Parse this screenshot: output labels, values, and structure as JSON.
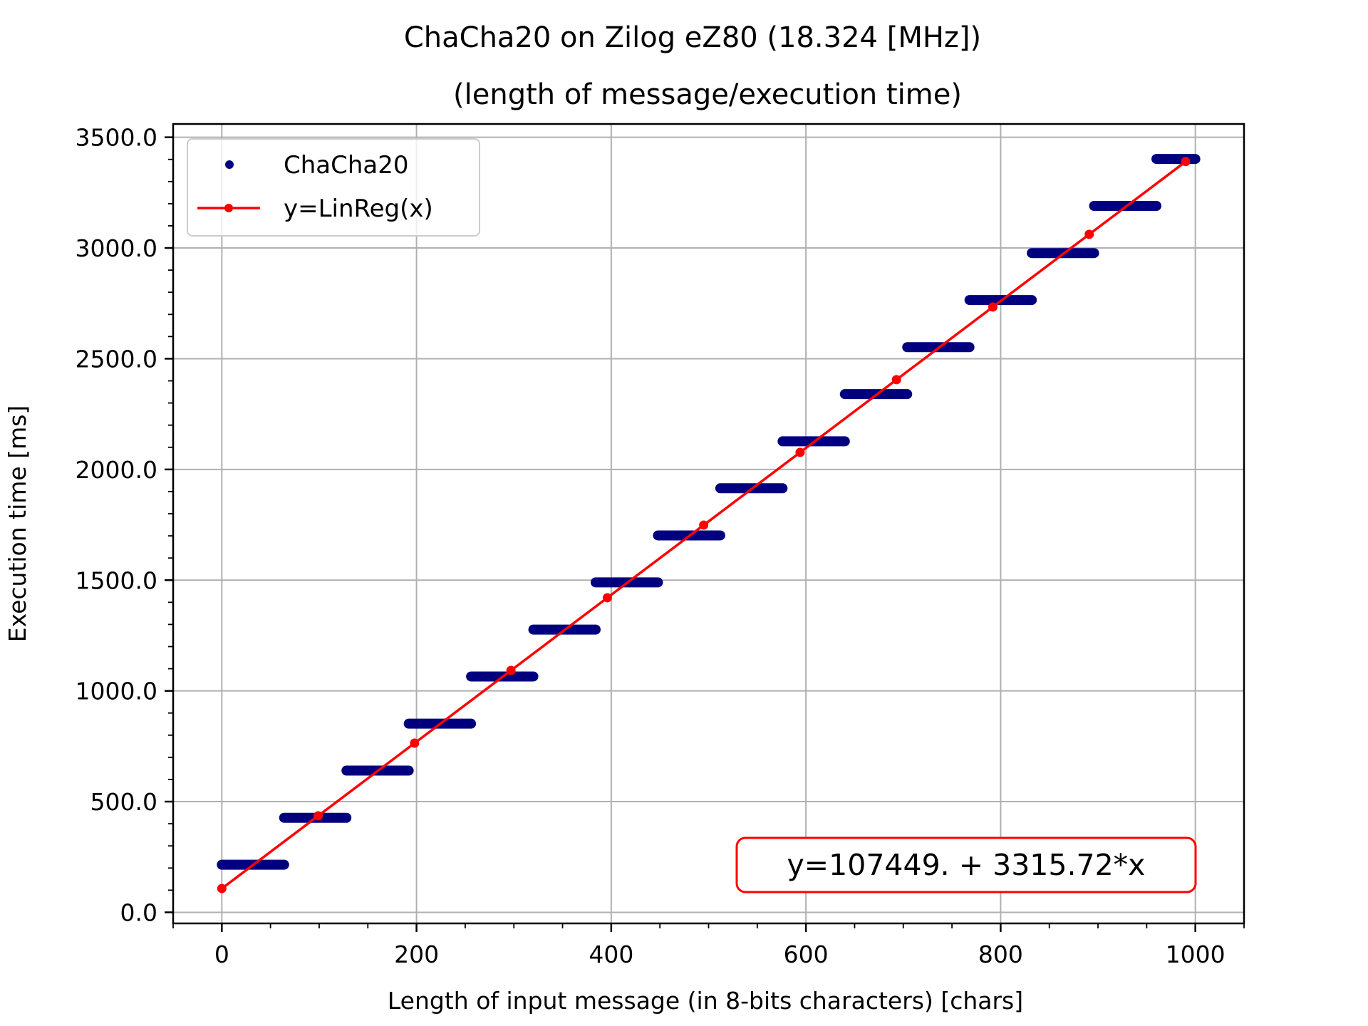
{
  "chart_data": {
    "type": "scatter",
    "title": "ChaCha20 on Zilog eZ80 (18.324 [MHz])",
    "subtitle": "(length of message/execution time)",
    "xlabel": "Length of input message (in 8-bits characters) [chars]",
    "ylabel": "Execution time [ms]",
    "xlim": [
      -50,
      1050
    ],
    "ylim": [
      -50,
      3560
    ],
    "x_ticks": [
      0,
      200,
      400,
      600,
      800,
      1000
    ],
    "x_tick_labels": [
      "0",
      "200",
      "400",
      "600",
      "800",
      "1000"
    ],
    "y_ticks": [
      0,
      500,
      1000,
      1500,
      2000,
      2500,
      3000,
      3500
    ],
    "y_tick_labels": [
      "0.0",
      "500.0",
      "1000.0",
      "1500.0",
      "2000.0",
      "2500.0",
      "3000.0",
      "3500.0"
    ],
    "grid": true,
    "legend_position": "top-left",
    "series": [
      {
        "name": "ChaCha20",
        "kind": "scatter",
        "color": "#00007f",
        "steps": [
          {
            "x_start": 0,
            "x_end": 64,
            "y": 215
          },
          {
            "x_start": 64,
            "x_end": 128,
            "y": 427
          },
          {
            "x_start": 128,
            "x_end": 192,
            "y": 640
          },
          {
            "x_start": 192,
            "x_end": 256,
            "y": 852
          },
          {
            "x_start": 256,
            "x_end": 320,
            "y": 1065
          },
          {
            "x_start": 320,
            "x_end": 384,
            "y": 1277
          },
          {
            "x_start": 384,
            "x_end": 448,
            "y": 1490
          },
          {
            "x_start": 448,
            "x_end": 512,
            "y": 1702
          },
          {
            "x_start": 512,
            "x_end": 576,
            "y": 1915
          },
          {
            "x_start": 576,
            "x_end": 640,
            "y": 2127
          },
          {
            "x_start": 640,
            "x_end": 704,
            "y": 2340
          },
          {
            "x_start": 704,
            "x_end": 768,
            "y": 2552
          },
          {
            "x_start": 768,
            "x_end": 832,
            "y": 2765
          },
          {
            "x_start": 832,
            "x_end": 896,
            "y": 2977
          },
          {
            "x_start": 896,
            "x_end": 960,
            "y": 3190
          },
          {
            "x_start": 960,
            "x_end": 1000,
            "y": 3402
          }
        ]
      },
      {
        "name": "y=LinReg(x)",
        "kind": "line",
        "color": "#ff0000",
        "x": [
          0,
          99,
          198,
          297,
          396,
          495,
          594,
          693,
          792,
          891,
          990
        ],
        "y": [
          107.4,
          435.7,
          763.9,
          1092.2,
          1420.5,
          1748.7,
          2077.0,
          2405.3,
          2733.6,
          3061.8,
          3390.1
        ]
      }
    ],
    "annotation": {
      "text": "y=107449. + 3315.72*x",
      "color": "#ff0000",
      "position": "bottom-right"
    }
  }
}
